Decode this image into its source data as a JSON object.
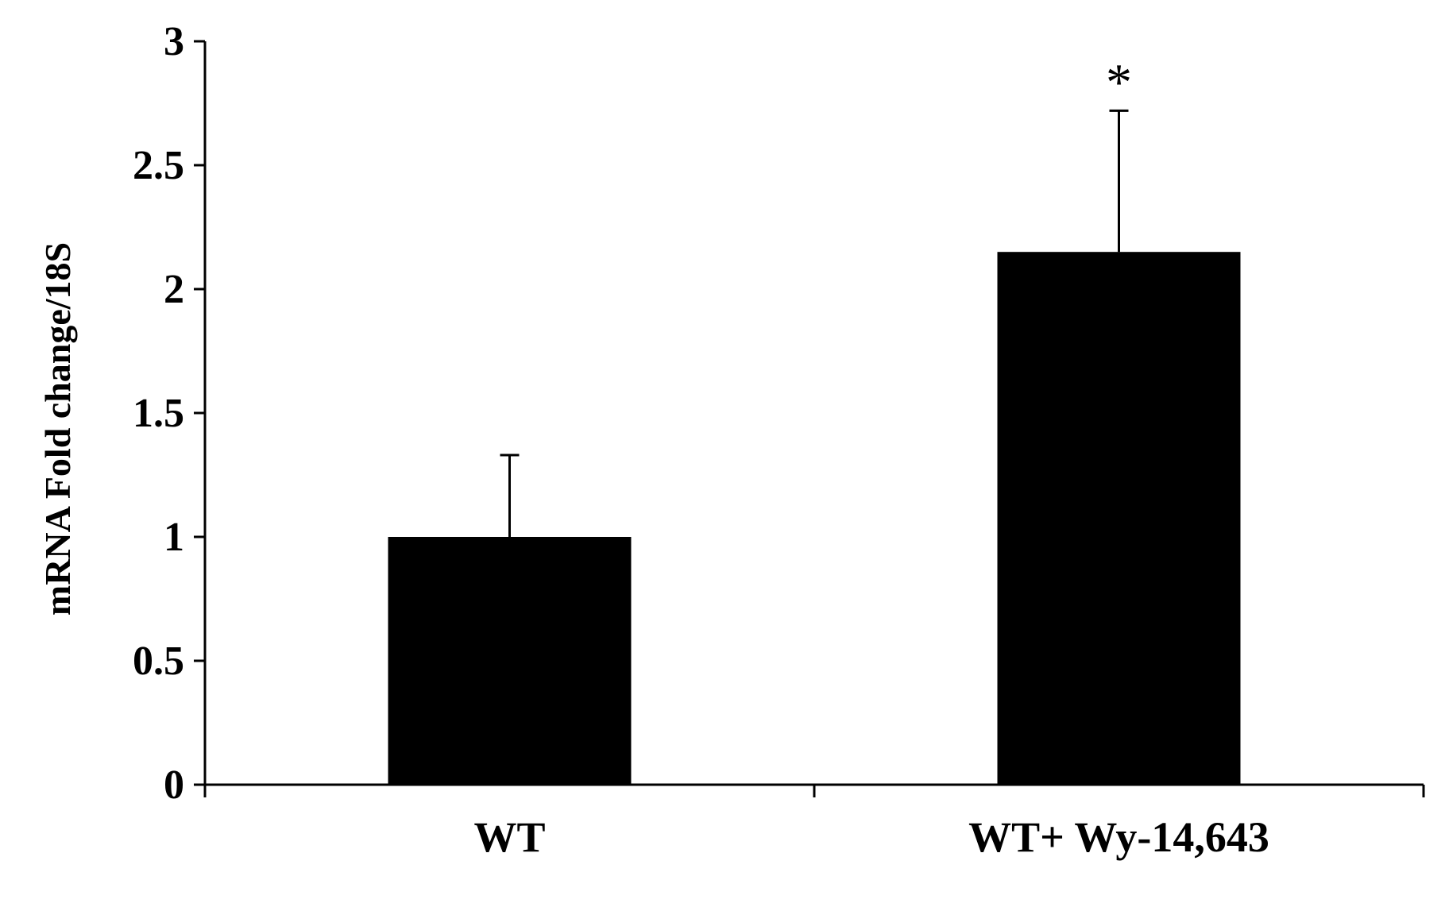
{
  "chart_data": {
    "type": "bar",
    "categories": [
      "WT",
      "WT+ Wy-14,643"
    ],
    "values": [
      1.0,
      2.15
    ],
    "error": [
      0.33,
      0.57
    ],
    "annotations": [
      "",
      "*"
    ],
    "ylabel": "mRNA Fold change/18S",
    "xlabel": "",
    "ylim": [
      0,
      3
    ],
    "yticks": [
      0,
      0.5,
      1,
      1.5,
      2,
      2.5,
      3
    ],
    "ytick_labels": [
      "0",
      "0.5",
      "1",
      "1.5",
      "2",
      "2.5",
      "3"
    ],
    "bar_color": "#000000",
    "grid": false,
    "legend": "none"
  }
}
